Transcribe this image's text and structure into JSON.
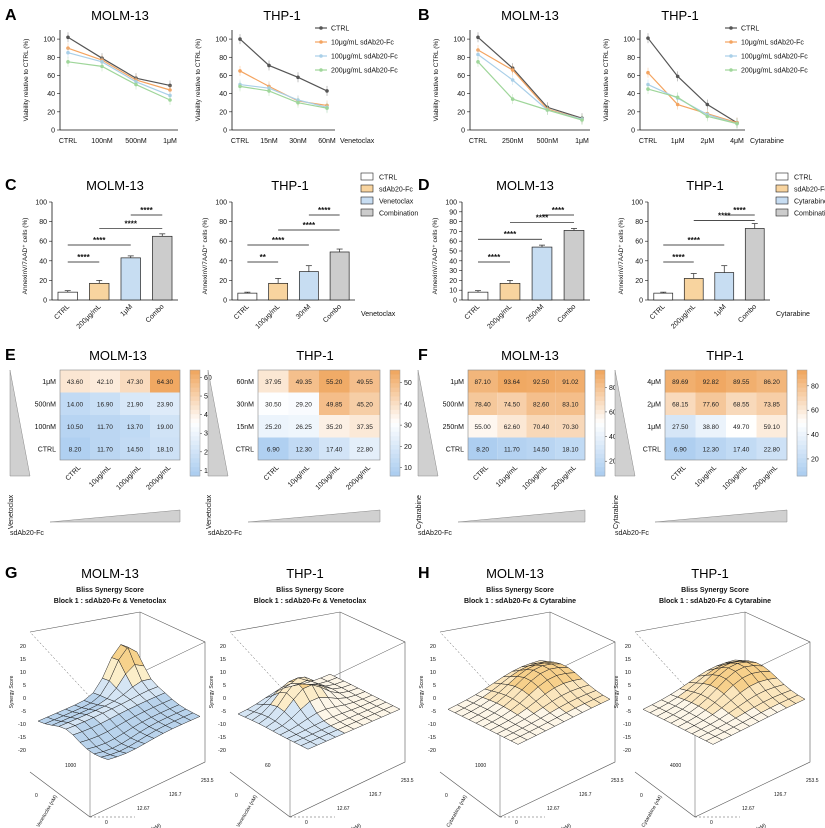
{
  "colors": {
    "ctrl": "#555555",
    "low": "#f4a460",
    "mid": "#a9cfe8",
    "high": "#9fd69a",
    "bar_ctrl": "#ffffff",
    "bar_sd": "#f8d49f",
    "bar_drug": "#c7ddf2",
    "bar_combo": "#cccccc"
  },
  "panels": {
    "A": "A",
    "B": "B",
    "C": "C",
    "D": "D",
    "E": "E",
    "F": "F",
    "G": "G",
    "H": "H"
  },
  "chart_data": [
    {
      "id": "A1",
      "type": "line",
      "title": "MOLM-13",
      "ylabel": "Viability relative to CTRL (%)",
      "xlabel": "",
      "categories": [
        "CTRL",
        "100nM",
        "500nM",
        "1μM"
      ],
      "yticks": [
        0,
        20,
        40,
        60,
        80,
        100
      ],
      "ylim": [
        0,
        110
      ],
      "series": [
        {
          "name": "CTRL",
          "values": [
            102,
            79,
            57,
            49
          ]
        },
        {
          "name": "10μg/mL sdAb20-Fc",
          "values": [
            90,
            77,
            55,
            44
          ]
        },
        {
          "name": "100μg/mL sdAb20-Fc",
          "values": [
            85,
            75,
            53,
            38
          ]
        },
        {
          "name": "200μg/mL sdAb20-Fc",
          "values": [
            75,
            70,
            50,
            33
          ]
        }
      ]
    },
    {
      "id": "A2",
      "type": "line",
      "title": "THP-1",
      "ylabel": "Viability relative to CTRL (%)",
      "xlabel": "Venetoclax",
      "categories": [
        "CTRL",
        "15nM",
        "30nM",
        "60nM"
      ],
      "yticks": [
        0,
        20,
        40,
        60,
        80,
        100
      ],
      "ylim": [
        0,
        110
      ],
      "legend": [
        "CTRL",
        "10μg/mL sdAb20-Fc",
        "100μg/mL sdAb20-Fc",
        "200μg/mL sdAb20-Fc"
      ],
      "series": [
        {
          "name": "CTRL",
          "values": [
            100,
            71,
            58,
            43
          ]
        },
        {
          "name": "10μg/mL sdAb20-Fc",
          "values": [
            65,
            48,
            32,
            27
          ]
        },
        {
          "name": "100μg/mL sdAb20-Fc",
          "values": [
            50,
            46,
            33,
            25
          ]
        },
        {
          "name": "200μg/mL sdAb20-Fc",
          "values": [
            48,
            43,
            30,
            24
          ]
        }
      ]
    },
    {
      "id": "B1",
      "type": "line",
      "title": "MOLM-13",
      "ylabel": "Viability relative to CTRL (%)",
      "xlabel": "",
      "categories": [
        "CTRL",
        "250nM",
        "500nM",
        "1μM"
      ],
      "yticks": [
        0,
        20,
        40,
        60,
        80,
        100
      ],
      "ylim": [
        0,
        110
      ],
      "series": [
        {
          "name": "CTRL",
          "values": [
            102,
            68,
            25,
            13
          ]
        },
        {
          "name": "10μg/mL sdAb20-Fc",
          "values": [
            88,
            66,
            23,
            12
          ]
        },
        {
          "name": "100μg/mL sdAb20-Fc",
          "values": [
            83,
            55,
            22,
            12
          ]
        },
        {
          "name": "200μg/mL sdAb20-Fc",
          "values": [
            75,
            34,
            22,
            11
          ]
        }
      ]
    },
    {
      "id": "B2",
      "type": "line",
      "title": "THP-1",
      "ylabel": "Viability relative to CTRL (%)",
      "xlabel": "Cytarabine",
      "categories": [
        "CTRL",
        "1μM",
        "2μM",
        "4μM"
      ],
      "yticks": [
        0,
        20,
        40,
        60,
        80,
        100
      ],
      "ylim": [
        0,
        110
      ],
      "legend": [
        "CTRL",
        "10μg/mL sdAb20-Fc",
        "100μg/mL sdAb20-Fc",
        "200μg/mL sdAb20-Fc"
      ],
      "series": [
        {
          "name": "CTRL",
          "values": [
            101,
            59,
            28,
            8
          ]
        },
        {
          "name": "10μg/mL sdAb20-Fc",
          "values": [
            63,
            28,
            18,
            8
          ]
        },
        {
          "name": "100μg/mL sdAb20-Fc",
          "values": [
            50,
            35,
            17,
            7
          ]
        },
        {
          "name": "200μg/mL sdAb20-Fc",
          "values": [
            45,
            36,
            15,
            7
          ]
        }
      ]
    },
    {
      "id": "C1",
      "type": "bar",
      "title": "MOLM-13",
      "ylabel": "AnnexinV/7AAD⁺ cells (%)",
      "xlabel": "",
      "categories": [
        "CTRL",
        "200μg/mL",
        "1μM",
        "Combo"
      ],
      "values": [
        8,
        17,
        43,
        65
      ],
      "errors": [
        1.5,
        3,
        2,
        2.5
      ],
      "yticks": [
        0,
        20,
        40,
        60,
        80,
        100
      ],
      "ylim": [
        0,
        100
      ],
      "sig": [
        {
          "from": 0,
          "to": 1,
          "label": "****"
        },
        {
          "from": 0,
          "to": 2,
          "label": "****"
        },
        {
          "from": 1,
          "to": 3,
          "label": "****"
        },
        {
          "from": 2,
          "to": 3,
          "label": "****"
        }
      ]
    },
    {
      "id": "C2",
      "type": "bar",
      "title": "THP-1",
      "ylabel": "AnnexinV/7AAD⁺ cells (%)",
      "xlabel": "Venetoclax",
      "categories": [
        "CTRL",
        "100μg/mL",
        "30nM",
        "Combo"
      ],
      "values": [
        7,
        17,
        29,
        49
      ],
      "errors": [
        1,
        5,
        6,
        3
      ],
      "yticks": [
        0,
        20,
        40,
        60,
        80,
        100
      ],
      "ylim": [
        0,
        100
      ],
      "legend": [
        "CTRL",
        "sdAb20-Fc",
        "Venetoclax",
        "Combination"
      ],
      "sig": [
        {
          "from": 0,
          "to": 1,
          "label": "**"
        },
        {
          "from": 0,
          "to": 2,
          "label": "****"
        },
        {
          "from": 1,
          "to": 3,
          "label": "****"
        },
        {
          "from": 2,
          "to": 3,
          "label": "****"
        }
      ]
    },
    {
      "id": "D1",
      "type": "bar",
      "title": "MOLM-13",
      "ylabel": "AnnexinV/7AAD⁺ cells (%)",
      "xlabel": "",
      "categories": [
        "CTRL",
        "200μg/mL",
        "250nM",
        "Combo"
      ],
      "values": [
        8,
        17,
        54,
        71
      ],
      "errors": [
        1.5,
        3,
        2,
        2
      ],
      "yticks": [
        0,
        10,
        20,
        30,
        40,
        50,
        60,
        70,
        80,
        90,
        100
      ],
      "ylim": [
        0,
        100
      ],
      "sig": [
        {
          "from": 0,
          "to": 1,
          "label": "****"
        },
        {
          "from": 0,
          "to": 2,
          "label": "****"
        },
        {
          "from": 1,
          "to": 3,
          "label": "****"
        },
        {
          "from": 2,
          "to": 3,
          "label": "****"
        }
      ]
    },
    {
      "id": "D2",
      "type": "bar",
      "title": "THP-1",
      "ylabel": "AnnexinV/7AAD⁺ cells (%)",
      "xlabel": "Cytarabine",
      "categories": [
        "CTRL",
        "200μg/mL",
        "1μM",
        "Combo"
      ],
      "values": [
        7,
        22,
        28,
        73
      ],
      "errors": [
        1,
        5,
        7,
        5
      ],
      "yticks": [
        0,
        20,
        40,
        60,
        80,
        100
      ],
      "ylim": [
        0,
        100
      ],
      "legend": [
        "CTRL",
        "sdAb20-Fc",
        "Cytarabine",
        "Combination"
      ],
      "sig": [
        {
          "from": 0,
          "to": 1,
          "label": "****"
        },
        {
          "from": 0,
          "to": 2,
          "label": "****"
        },
        {
          "from": 1,
          "to": 3,
          "label": "****"
        },
        {
          "from": 2,
          "to": 3,
          "label": "****"
        }
      ]
    },
    {
      "id": "E1",
      "type": "heatmap",
      "title": "MOLM-13",
      "rows": [
        "1μM",
        "500nM",
        "100nM",
        "CTRL"
      ],
      "cols": [
        "CTRL",
        "10μg/mL",
        "100μg/mL",
        "200μg/mL"
      ],
      "values": [
        [
          43.6,
          42.1,
          47.3,
          64.3
        ],
        [
          14.0,
          16.9,
          21.9,
          23.9
        ],
        [
          10.5,
          11.7,
          13.7,
          19.0
        ],
        [
          8.2,
          11.7,
          14.5,
          18.1
        ]
      ],
      "colorbar": [
        10,
        20,
        30,
        40,
        50,
        60
      ],
      "range": [
        7,
        64
      ],
      "ylabel": "Venetoclax",
      "xlabel": "sdAb20-Fc"
    },
    {
      "id": "E2",
      "type": "heatmap",
      "title": "THP-1",
      "rows": [
        "60nM",
        "30nM",
        "15nM",
        "CTRL"
      ],
      "cols": [
        "CTRL",
        "10μg/mL",
        "100μg/mL",
        "200μg/mL"
      ],
      "values": [
        [
          37.95,
          49.35,
          55.2,
          49.55
        ],
        [
          30.5,
          29.2,
          49.85,
          45.2
        ],
        [
          25.2,
          26.25,
          35.2,
          37.35
        ],
        [
          6.9,
          12.3,
          17.4,
          22.8
        ]
      ],
      "colorbar": [
        10,
        20,
        30,
        40,
        50
      ],
      "range": [
        6,
        56
      ],
      "ylabel": "Venetoclax",
      "xlabel": "sdAb20-Fc"
    },
    {
      "id": "F1",
      "type": "heatmap",
      "title": "MOLM-13",
      "rows": [
        "1μM",
        "500nM",
        "250nM",
        "CTRL"
      ],
      "cols": [
        "CTRL",
        "10μg/mL",
        "100μg/mL",
        "200μg/mL"
      ],
      "values": [
        [
          87.1,
          93.64,
          92.5,
          91.02
        ],
        [
          78.4,
          74.5,
          82.6,
          83.1
        ],
        [
          55.0,
          62.6,
          70.4,
          70.3
        ],
        [
          8.2,
          11.7,
          14.5,
          18.1
        ]
      ],
      "colorbar": [
        20,
        40,
        60,
        80
      ],
      "range": [
        8,
        94
      ],
      "ylabel": "Cytarabine",
      "xlabel": "sdAb20-Fc"
    },
    {
      "id": "F2",
      "type": "heatmap",
      "title": "THP-1",
      "rows": [
        "4μM",
        "2μM",
        "1μM",
        "CTRL"
      ],
      "cols": [
        "CTRL",
        "10μg/mL",
        "100μg/mL",
        "200μg/mL"
      ],
      "values": [
        [
          89.69,
          92.82,
          89.55,
          86.2
        ],
        [
          68.15,
          77.6,
          68.55,
          73.85
        ],
        [
          27.5,
          38.8,
          49.7,
          59.1
        ],
        [
          6.9,
          12.3,
          17.4,
          22.8
        ]
      ],
      "colorbar": [
        20,
        40,
        60,
        80
      ],
      "range": [
        6,
        93
      ],
      "ylabel": "Cytarabine",
      "xlabel": "sdAb20-Fc"
    },
    {
      "id": "G1",
      "type": "surface",
      "title": "MOLM-13",
      "subtitle1": "Bliss Synergy Score",
      "subtitle2": "Block 1 : sdAb20-Fc & Venetoclax",
      "zlabel": "Synergy Score",
      "zticks": [
        20,
        15,
        10,
        5,
        0,
        -5,
        -10,
        -15,
        -20
      ],
      "ylabel": "Venetoclax (nM)",
      "yticks": [
        0,
        1000
      ],
      "xlabel": "sdAb20-Fc (nM)",
      "xticks": [
        0,
        12.67,
        126.7,
        253.5
      ],
      "peak": 18,
      "style": "blue"
    },
    {
      "id": "G2",
      "type": "surface",
      "title": "THP-1",
      "subtitle1": "Bliss Synergy Score",
      "subtitle2": "Block 1 : sdAb20-Fc & Venetoclax",
      "zlabel": "Synergy Score",
      "zticks": [
        20,
        15,
        10,
        5,
        0,
        -5,
        -10,
        -15,
        -20
      ],
      "ylabel": "Venetoclax (nM)",
      "yticks": [
        0,
        60
      ],
      "xlabel": "sdAb20-Fc (nM)",
      "xticks": [
        0,
        12.67,
        126.7,
        253.5
      ],
      "peak": 12,
      "style": "mixed"
    },
    {
      "id": "H1",
      "type": "surface",
      "title": "MOLM-13",
      "subtitle1": "Bliss Synergy Score",
      "subtitle2": "Block 1 : sdAb20-Fc & Cytarabine",
      "zlabel": "Synergy Score",
      "zticks": [
        20,
        15,
        10,
        5,
        0,
        -5,
        -10,
        -15,
        -20
      ],
      "ylabel": "Cytarabine (nM)",
      "yticks": [
        0,
        1000
      ],
      "xlabel": "sdAb20-Fc (nM)",
      "xticks": [
        0,
        12.67,
        126.7,
        253.5
      ],
      "peak": 8,
      "style": "orange"
    },
    {
      "id": "H2",
      "type": "surface",
      "title": "THP-1",
      "subtitle1": "Bliss Synergy Score",
      "subtitle2": "Block 1 : sdAb20-Fc & Cytarabine",
      "zlabel": "Synergy Score",
      "zticks": [
        20,
        15,
        10,
        5,
        0,
        -5,
        -10,
        -15,
        -20
      ],
      "ylabel": "Cytarabine (nM)",
      "yticks": [
        0,
        4000
      ],
      "xlabel": "sdAb20-Fc (nM)",
      "xticks": [
        0,
        12.67,
        126.7,
        253.5
      ],
      "peak": 9,
      "style": "orange"
    }
  ]
}
